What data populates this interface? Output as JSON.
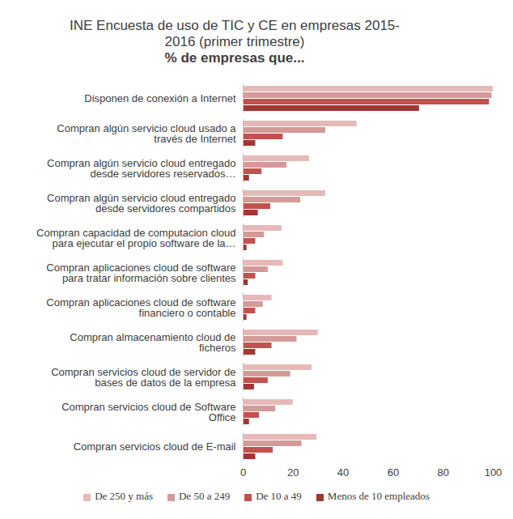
{
  "chart_data": {
    "type": "bar",
    "orientation": "horizontal",
    "title": "INE Encuesta de uso de TIC y CE en empresas 2015-2016 (primer trimestre)",
    "subtitle": "% de empresas que...",
    "categories": [
      "Disponen de conexión a Internet",
      "Compran algún servicio cloud usado a través de Internet",
      "Compran algún servicio cloud entregado desde servidores reservados…",
      "Compran algún servicio cloud entregado desde servidores compartidos",
      "Compran capacidad de computacion cloud para ejecutar el propio software de la…",
      "Compran aplicaciones cloud de software para tratar información sobre clientes",
      "Compran aplicaciones cloud de software financiero o contable",
      "Compran almacenamiento cloud de ficheros",
      "Compran servicios cloud de servidor de bases de datos de la empresa",
      "Compran servicios cloud de Software Office",
      "Compran servicios cloud de E-mail"
    ],
    "series": [
      {
        "name": "De 250 y más",
        "color": "#e6b9b8",
        "values": [
          100,
          45.5,
          26.5,
          33,
          15.5,
          16,
          11.5,
          30,
          27.5,
          20,
          29.5
        ]
      },
      {
        "name": "De 50 a 249",
        "color": "#d49a99",
        "values": [
          99.5,
          33,
          17.5,
          23,
          8.5,
          10,
          8,
          21.5,
          19,
          13,
          23.5
        ]
      },
      {
        "name": "De 10 a 49",
        "color": "#c3524f",
        "values": [
          98.5,
          16,
          7.5,
          11,
          5,
          5,
          5,
          11.5,
          10,
          6.5,
          12
        ]
      },
      {
        "name": "Menos de 10 empleados",
        "color": "#a33533",
        "values": [
          70.5,
          5,
          2.5,
          6,
          1.5,
          2,
          1.5,
          5,
          4.5,
          2.5,
          5
        ]
      }
    ],
    "xlim": [
      0,
      100
    ],
    "xticks": [
      0,
      20,
      40,
      60,
      80,
      100
    ],
    "grid": false,
    "legend": "bottom"
  }
}
